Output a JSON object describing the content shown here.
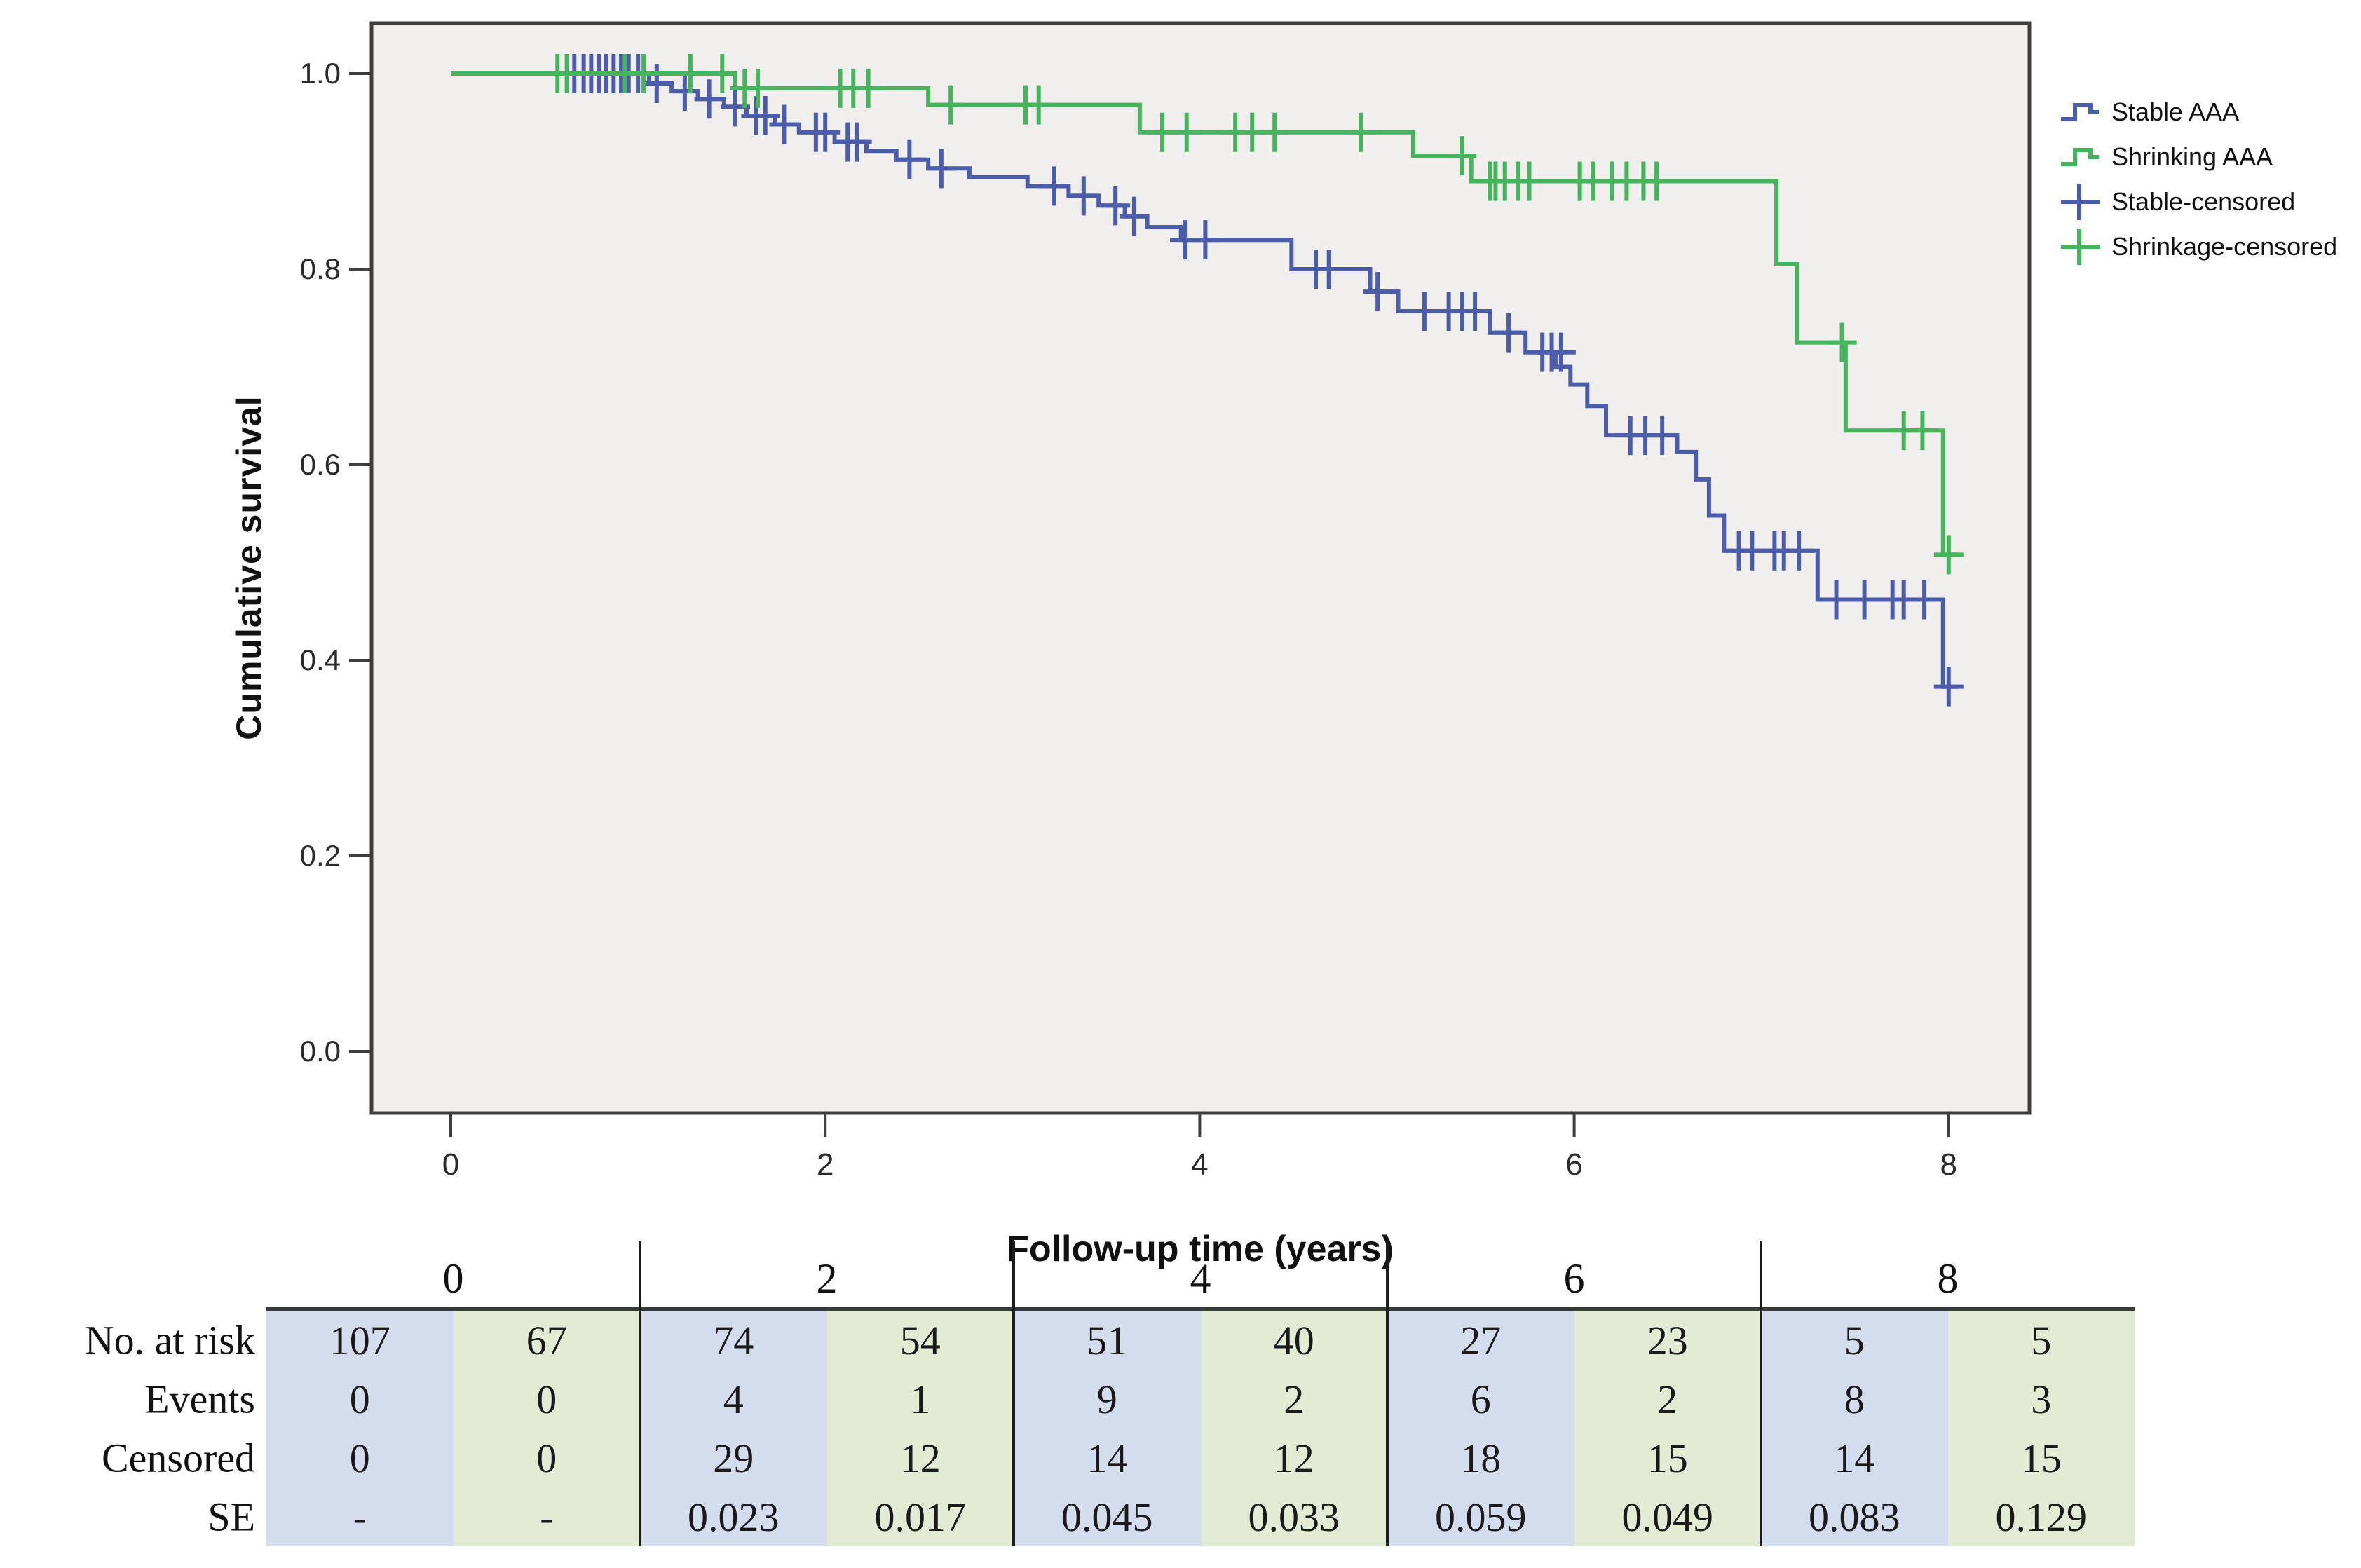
{
  "colors": {
    "stable_line": "#4b5caa",
    "shrinking_line": "#45b45c",
    "plot_background": "#f0efee",
    "plot_border": "#3e3e3e",
    "tick_label": "#2b2b2b",
    "table_blue": "#d3ddee",
    "table_green": "#e2ecd5",
    "table_divider": "#1c1c1c"
  },
  "chart_data": {
    "type": "line",
    "subtype": "kaplan-meier-step",
    "title": "",
    "xlabel": "Follow-up time (years)",
    "ylabel": "Cumulative survival",
    "xlim": [
      0,
      8.45
    ],
    "ylim": [
      -0.06,
      1.05
    ],
    "xticks": [
      0,
      2,
      4,
      6,
      8
    ],
    "xtick_labels": [
      "0",
      "2",
      "4",
      "6",
      "8"
    ],
    "yticks": [
      0.0,
      0.2,
      0.4,
      0.6,
      0.8,
      1.0
    ],
    "ytick_labels": [
      "0.0",
      "0.2",
      "0.4",
      "0.6",
      "0.8",
      "1.0"
    ],
    "grid": false,
    "legend_position": "right-outside",
    "series": [
      {
        "name": "Stable AAA",
        "color": "#4b5caa",
        "steps": [
          [
            0,
            1.0
          ],
          [
            1.06,
            0.99
          ],
          [
            1.18,
            0.982
          ],
          [
            1.32,
            0.974
          ],
          [
            1.46,
            0.966
          ],
          [
            1.58,
            0.957
          ],
          [
            1.73,
            0.948
          ],
          [
            1.86,
            0.94
          ],
          [
            2.05,
            0.93
          ],
          [
            2.22,
            0.921
          ],
          [
            2.38,
            0.912
          ],
          [
            2.55,
            0.903
          ],
          [
            2.77,
            0.894
          ],
          [
            3.08,
            0.885
          ],
          [
            3.3,
            0.875
          ],
          [
            3.46,
            0.865
          ],
          [
            3.6,
            0.854
          ],
          [
            3.72,
            0.843
          ],
          [
            3.9,
            0.83
          ],
          [
            4.49,
            0.8
          ],
          [
            4.91,
            0.777
          ],
          [
            5.06,
            0.757
          ],
          [
            5.55,
            0.735
          ],
          [
            5.74,
            0.715
          ],
          [
            5.9,
            0.7
          ],
          [
            5.98,
            0.682
          ],
          [
            6.07,
            0.66
          ],
          [
            6.17,
            0.63
          ],
          [
            6.55,
            0.613
          ],
          [
            6.65,
            0.585
          ],
          [
            6.72,
            0.548
          ],
          [
            6.8,
            0.512
          ],
          [
            7.3,
            0.462
          ],
          [
            7.97,
            0.373
          ],
          [
            8.05,
            0.373
          ]
        ],
        "censors": [
          [
            0.66,
            1.0
          ],
          [
            0.71,
            1.0
          ],
          [
            0.75,
            1.0
          ],
          [
            0.79,
            1.0
          ],
          [
            0.83,
            1.0
          ],
          [
            0.87,
            1.0
          ],
          [
            0.91,
            1.0
          ],
          [
            0.95,
            1.0
          ],
          [
            1.0,
            1.0
          ],
          [
            1.1,
            0.99
          ],
          [
            1.25,
            0.982
          ],
          [
            1.38,
            0.974
          ],
          [
            1.52,
            0.966
          ],
          [
            1.63,
            0.957
          ],
          [
            1.68,
            0.957
          ],
          [
            1.78,
            0.948
          ],
          [
            1.95,
            0.94
          ],
          [
            2.0,
            0.94
          ],
          [
            2.12,
            0.93
          ],
          [
            2.17,
            0.93
          ],
          [
            2.45,
            0.912
          ],
          [
            2.62,
            0.903
          ],
          [
            3.22,
            0.885
          ],
          [
            3.38,
            0.875
          ],
          [
            3.55,
            0.865
          ],
          [
            3.65,
            0.854
          ],
          [
            3.92,
            0.83
          ],
          [
            4.03,
            0.83
          ],
          [
            4.62,
            0.8
          ],
          [
            4.69,
            0.8
          ],
          [
            4.95,
            0.777
          ],
          [
            5.2,
            0.757
          ],
          [
            5.33,
            0.757
          ],
          [
            5.4,
            0.757
          ],
          [
            5.47,
            0.757
          ],
          [
            5.65,
            0.735
          ],
          [
            5.83,
            0.715
          ],
          [
            5.88,
            0.715
          ],
          [
            5.93,
            0.715
          ],
          [
            6.3,
            0.63
          ],
          [
            6.38,
            0.63
          ],
          [
            6.47,
            0.63
          ],
          [
            6.88,
            0.512
          ],
          [
            6.95,
            0.512
          ],
          [
            7.07,
            0.512
          ],
          [
            7.12,
            0.512
          ],
          [
            7.2,
            0.512
          ],
          [
            7.4,
            0.462
          ],
          [
            7.55,
            0.462
          ],
          [
            7.7,
            0.462
          ],
          [
            7.76,
            0.462
          ],
          [
            7.87,
            0.462
          ],
          [
            8.0,
            0.373
          ]
        ]
      },
      {
        "name": "Shrinking AAA",
        "color": "#45b45c",
        "steps": [
          [
            0,
            1.0
          ],
          [
            1.52,
            0.985
          ],
          [
            2.55,
            0.968
          ],
          [
            3.68,
            0.94
          ],
          [
            5.14,
            0.916
          ],
          [
            5.45,
            0.89
          ],
          [
            7.08,
            0.805
          ],
          [
            7.19,
            0.725
          ],
          [
            7.45,
            0.635
          ],
          [
            7.97,
            0.508
          ],
          [
            8.05,
            0.508
          ]
        ],
        "censors": [
          [
            0.57,
            1.0
          ],
          [
            0.62,
            1.0
          ],
          [
            0.93,
            1.0
          ],
          [
            1.03,
            1.0
          ],
          [
            1.28,
            1.0
          ],
          [
            1.45,
            1.0
          ],
          [
            1.57,
            0.985
          ],
          [
            1.64,
            0.985
          ],
          [
            2.08,
            0.985
          ],
          [
            2.15,
            0.985
          ],
          [
            2.23,
            0.985
          ],
          [
            2.67,
            0.968
          ],
          [
            3.07,
            0.968
          ],
          [
            3.14,
            0.968
          ],
          [
            3.8,
            0.94
          ],
          [
            3.93,
            0.94
          ],
          [
            4.19,
            0.94
          ],
          [
            4.28,
            0.94
          ],
          [
            4.4,
            0.94
          ],
          [
            4.86,
            0.94
          ],
          [
            5.4,
            0.916
          ],
          [
            5.55,
            0.89
          ],
          [
            5.58,
            0.89
          ],
          [
            5.63,
            0.89
          ],
          [
            5.7,
            0.89
          ],
          [
            5.76,
            0.89
          ],
          [
            6.03,
            0.89
          ],
          [
            6.1,
            0.89
          ],
          [
            6.2,
            0.89
          ],
          [
            6.28,
            0.89
          ],
          [
            6.37,
            0.89
          ],
          [
            6.44,
            0.89
          ],
          [
            7.43,
            0.725
          ],
          [
            7.76,
            0.635
          ],
          [
            7.86,
            0.635
          ],
          [
            8.0,
            0.508
          ]
        ]
      }
    ]
  },
  "legend": {
    "entries": [
      {
        "label": "Stable AAA",
        "color": "#4b5caa",
        "glyph": "step-line"
      },
      {
        "label": "Shrinking AAA",
        "color": "#45b45c",
        "glyph": "step-line"
      },
      {
        "label": "Stable-censored",
        "color": "#4b5caa",
        "glyph": "plus"
      },
      {
        "label": "Shrinkage-censored",
        "color": "#45b45c",
        "glyph": "plus"
      }
    ]
  },
  "risk_table": {
    "time_headers": [
      "0",
      "2",
      "4",
      "6",
      "8"
    ],
    "group_names": [
      "Stable AAA",
      "Shrinking AAA"
    ],
    "rows": [
      {
        "label": "No. at risk",
        "values": [
          "107",
          "67",
          "74",
          "54",
          "51",
          "40",
          "27",
          "23",
          "5",
          "5"
        ]
      },
      {
        "label": "Events",
        "values": [
          "0",
          "0",
          "4",
          "1",
          "9",
          "2",
          "6",
          "2",
          "8",
          "3"
        ]
      },
      {
        "label": "Censored",
        "values": [
          "0",
          "0",
          "29",
          "12",
          "14",
          "12",
          "18",
          "15",
          "14",
          "15"
        ]
      },
      {
        "label": "SE",
        "values": [
          "-",
          "-",
          "0.023",
          "0.017",
          "0.045",
          "0.033",
          "0.059",
          "0.049",
          "0.083",
          "0.129"
        ]
      }
    ]
  }
}
